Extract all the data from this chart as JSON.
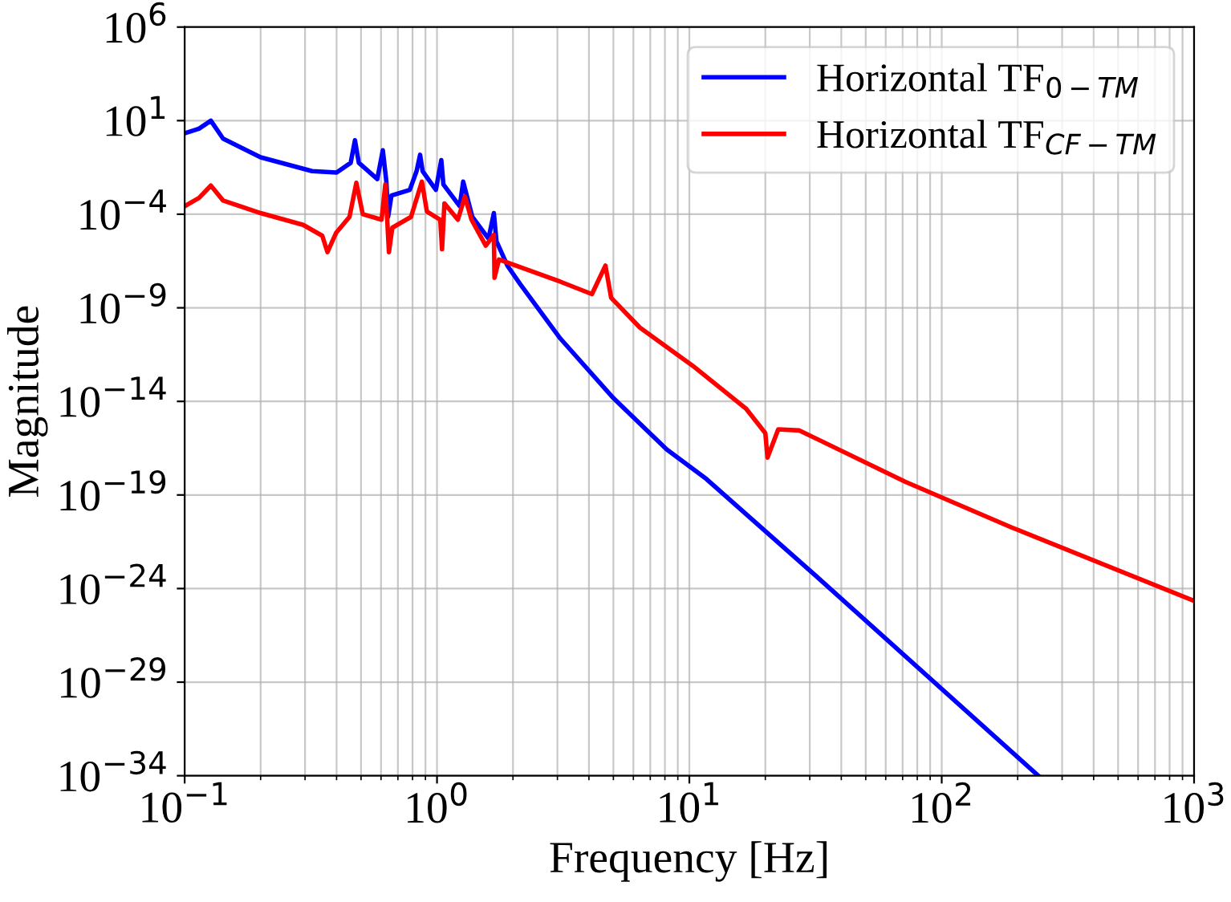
{
  "chart_data": {
    "type": "line",
    "xlabel": "Frequency [Hz]",
    "ylabel": "Magnitude",
    "log": "xy",
    "grid": true,
    "legend": "top right",
    "line_style": "solid",
    "marker": "none",
    "xlim": [
      0.1,
      1000
    ],
    "ylim": [
      1e-34,
      1000000.0
    ],
    "xticks": [
      {
        "value": 0.1,
        "label": "10$^{−1}$"
      },
      {
        "value": 1,
        "label": "10$^{0}$"
      },
      {
        "value": 10,
        "label": "10$^{1}$"
      },
      {
        "value": 100,
        "label": "10$^{2}$"
      },
      {
        "value": 1000,
        "label": "10$^{3}$"
      }
    ],
    "yticks": [
      {
        "value": 1e-34,
        "label": "10$^{−34}$"
      },
      {
        "value": 1e-29,
        "label": "10$^{−29}$"
      },
      {
        "value": 1e-24,
        "label": "10$^{−24}$"
      },
      {
        "value": 1e-19,
        "label": "10$^{−19}$"
      },
      {
        "value": 1e-14,
        "label": "10$^{−14}$"
      },
      {
        "value": 1e-09,
        "label": "10$^{−9}$"
      },
      {
        "value": 0.0001,
        "label": "10$^{−4}$"
      },
      {
        "value": 10,
        "label": "10$^{1}$"
      },
      {
        "value": 1000000.0,
        "label": "10$^{6}$"
      }
    ],
    "series": [
      {
        "name": "Horizontal TF$_{0−TM}$",
        "color": "#0000ff",
        "x": [
          0.1,
          0.114,
          0.127,
          0.142,
          0.2,
          0.32,
          0.4,
          0.455,
          0.473,
          0.49,
          0.58,
          0.61,
          0.63,
          0.64,
          0.66,
          0.78,
          0.83,
          0.857,
          0.877,
          0.99,
          1.04,
          1.06,
          1.23,
          1.27,
          1.38,
          1.6,
          1.68,
          1.72,
          1.9,
          2.14,
          3.08,
          5.0,
          8.13,
          11.7,
          31.6,
          241.5
        ],
        "values": [
          2.1,
          3.7,
          10,
          1.1,
          0.11,
          0.02,
          0.017,
          0.056,
          0.9,
          0.056,
          0.0076,
          0.26,
          0.0055,
          7.2e-05,
          0.001,
          0.002,
          0.02,
          0.15,
          0.02,
          0.002,
          0.078,
          0.0039,
          0.00027,
          0.0055,
          7.2e-05,
          5e-06,
          0.000115,
          3.6e-06,
          1.8e-07,
          1.8e-08,
          2.3e-11,
          1.5e-14,
          2.7e-17,
          7e-19,
          5e-24,
          1e-34
        ]
      },
      {
        "name": "Horizontal TF$_{CF−TM}$",
        "color": "#ff0000",
        "x": [
          0.1,
          0.114,
          0.127,
          0.142,
          0.2,
          0.295,
          0.351,
          0.368,
          0.398,
          0.45,
          0.479,
          0.508,
          0.603,
          0.624,
          0.645,
          0.665,
          0.789,
          0.871,
          0.912,
          1.03,
          1.047,
          1.07,
          1.21,
          1.29,
          1.37,
          1.56,
          1.68,
          1.69,
          1.76,
          3.08,
          4.11,
          4.65,
          4.9,
          6.37,
          10.3,
          16.8,
          20,
          20.4,
          22.5,
          27.3,
          71.9,
          190,
          1000
        ],
        "values": [
          0.00027,
          0.00074,
          0.0034,
          0.00054,
          0.000115,
          2.7e-05,
          7.1e-06,
          9.5e-07,
          1e-05,
          7.2e-05,
          0.0048,
          0.0001,
          5.1e-05,
          0.0039,
          9.5e-07,
          1.9e-05,
          7.2e-05,
          0.0055,
          0.00014,
          5.1e-05,
          1.35e-06,
          0.00038,
          5.1e-05,
          0.00089,
          5.1e-05,
          2.1e-06,
          7.9e-06,
          4e-08,
          3.8e-07,
          2.5e-08,
          5.4e-09,
          1.8e-07,
          3.4e-09,
          8.7e-11,
          8.1e-13,
          4e-15,
          2e-16,
          1e-17,
          3.2e-16,
          2.8e-16,
          5e-19,
          1.8e-21,
          2.2e-25
        ]
      }
    ]
  }
}
